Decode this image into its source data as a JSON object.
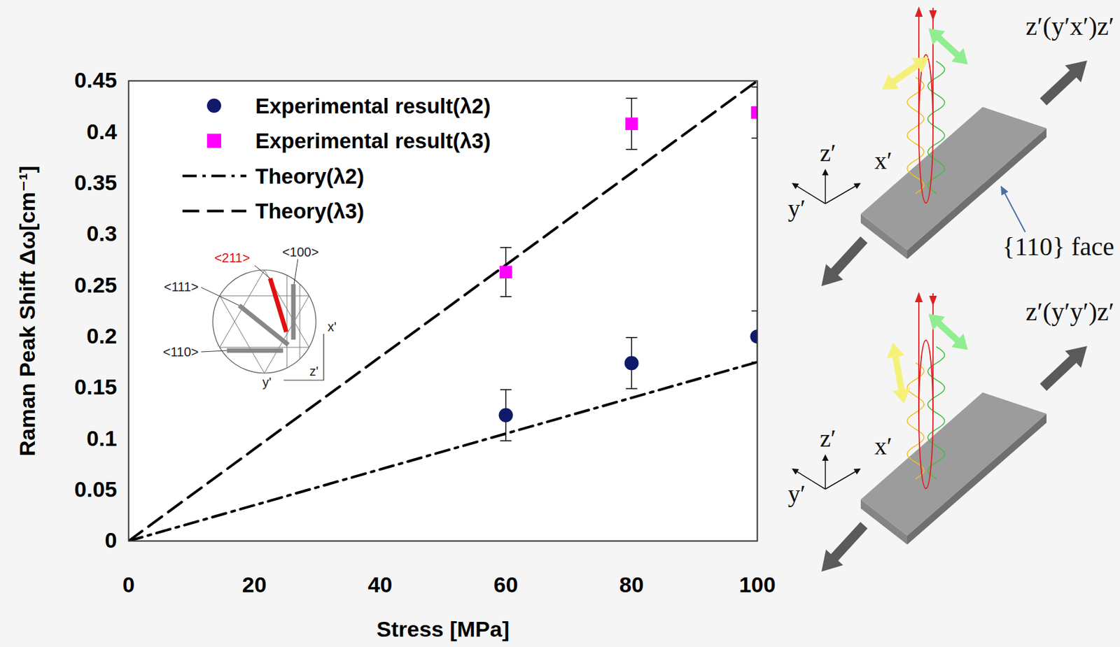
{
  "chart_data": {
    "type": "scatter",
    "x_label": "Stress [MPa]",
    "y_label": "Raman Peak Shift Δω[cm⁻¹]",
    "xlim": [
      0,
      100
    ],
    "xticks": [
      0,
      20,
      40,
      60,
      80,
      100
    ],
    "ylim": [
      0,
      0.45
    ],
    "yticks": [
      0,
      0.05,
      0.1,
      0.15,
      0.2,
      0.25,
      0.3,
      0.35,
      0.4,
      0.45
    ],
    "grid": false,
    "legend": "top-left",
    "series": [
      {
        "name": "Experimental result(λ2)",
        "type": "scatter",
        "marker": "circle",
        "color": "#0f1a6b",
        "x": [
          60,
          80,
          100
        ],
        "values": [
          0.123,
          0.174,
          0.2
        ],
        "errors": [
          0.025,
          0.025,
          0.025
        ]
      },
      {
        "name": "Experimental result(λ3)",
        "type": "scatter",
        "marker": "square",
        "color": "#ff00ff",
        "x": [
          60,
          80,
          100
        ],
        "values": [
          0.263,
          0.408,
          0.419
        ],
        "errors": [
          0.024,
          0.025,
          0.025
        ]
      },
      {
        "name": "Theory(λ2)",
        "type": "line",
        "line_style": "dashdot",
        "color": "#000000",
        "x": [
          0,
          20,
          40,
          60,
          80,
          100
        ],
        "values": [
          0,
          0.035,
          0.07,
          0.105,
          0.14,
          0.175
        ]
      },
      {
        "name": "Theory(λ3)",
        "type": "line",
        "line_style": "dashed",
        "color": "#000000",
        "x": [
          0,
          20,
          40,
          60,
          80,
          100
        ],
        "values": [
          0,
          0.09,
          0.18,
          0.27,
          0.36,
          0.45
        ]
      }
    ],
    "annotations": [
      "<211>",
      "<100>",
      "<111>",
      "<110>",
      "x'",
      "y'",
      "z'"
    ]
  },
  "diagram": {
    "panels": [
      {
        "title": "z′(y′x′)z′",
        "axes": [
          "z′",
          "x′",
          "y′"
        ],
        "face_label": "{110} face"
      },
      {
        "title": "z′(y′y′)z′",
        "axes": [
          "z′",
          "x′",
          "y′"
        ]
      }
    ]
  }
}
